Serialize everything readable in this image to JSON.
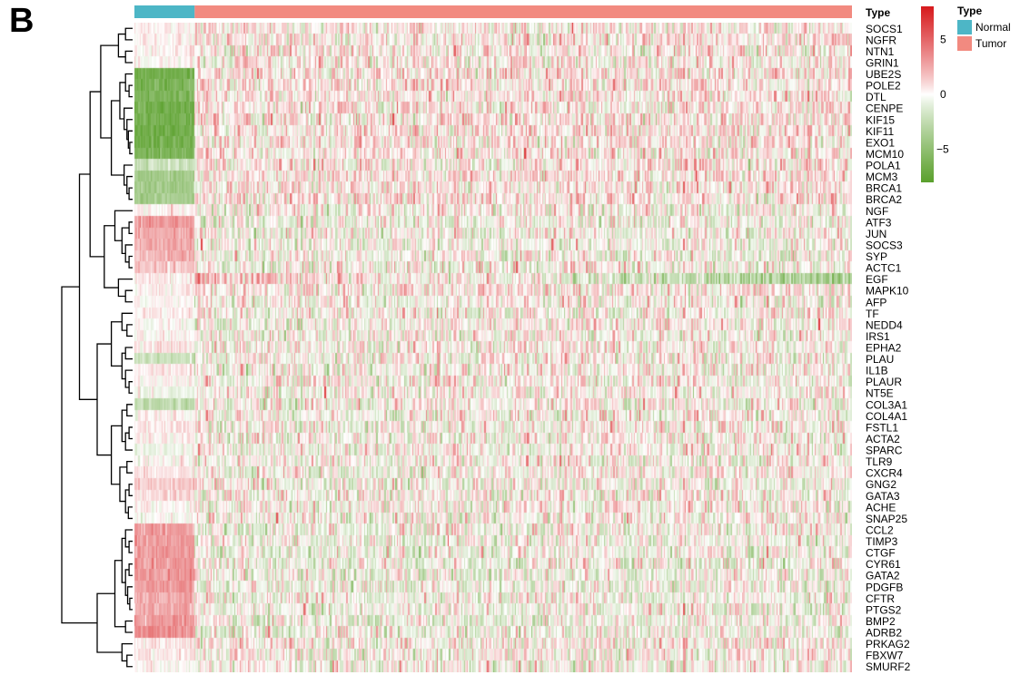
{
  "panel_label": "B",
  "chart_data": {
    "type": "heatmap",
    "genes": [
      "SOCS1",
      "NGFR",
      "NTN1",
      "GRIN1",
      "UBE2S",
      "POLE2",
      "DTL",
      "CENPE",
      "KIF15",
      "KIF11",
      "EXO1",
      "MCM10",
      "POLA1",
      "MCM3",
      "BRCA1",
      "BRCA2",
      "NGF",
      "ATF3",
      "JUN",
      "SOCS3",
      "SYP",
      "ACTC1",
      "EGF",
      "MAPK10",
      "AFP",
      "TF",
      "NEDD4",
      "IRS1",
      "EPHA2",
      "PLAU",
      "IL1B",
      "PLAUR",
      "NT5E",
      "COL3A1",
      "COL4A1",
      "FSTL1",
      "ACTA2",
      "SPARC",
      "TLR9",
      "CXCR4",
      "GNG2",
      "GATA3",
      "ACHE",
      "SNAP25",
      "CCL2",
      "TIMP3",
      "CTGF",
      "CYR61",
      "GATA2",
      "PDGFB",
      "CFTR",
      "PTGS2",
      "BMP2",
      "ADRB2",
      "PRKAG2",
      "FBXW7",
      "SMURF2"
    ],
    "sample_groups": [
      {
        "name": "Normal",
        "color": "#4DB6C6",
        "n_samples": 44,
        "approx_mean_expression": [
          0.3,
          0.2,
          0.3,
          0.2,
          -6.5,
          -6,
          -6,
          -6.5,
          -6.5,
          -6.5,
          -6.5,
          -6,
          -2,
          -4,
          -4,
          -4,
          0.4,
          3,
          2.5,
          2.5,
          2,
          1.5,
          0.3,
          0.5,
          0.2,
          0.5,
          0,
          0,
          0.5,
          -2,
          0.5,
          0,
          -0.5,
          -2.5,
          0.2,
          0.5,
          0.3,
          -0.5,
          0.2,
          0.5,
          1.5,
          1,
          0.2,
          0,
          3,
          3,
          3,
          3,
          3,
          3,
          2.5,
          2.5,
          3,
          3.5,
          0.5,
          0.5,
          0
        ]
      },
      {
        "name": "Tumor",
        "color": "#F28A80",
        "n_samples": 480,
        "approx_mean_expression": [
          0.2,
          0.4,
          0.3,
          0.3,
          0.6,
          0.5,
          0.5,
          0.5,
          0.5,
          0.5,
          0.5,
          0.5,
          0.4,
          0.5,
          0.5,
          0.5,
          0,
          -0.3,
          -0.3,
          -0.3,
          -0.2,
          -0.1,
          0,
          0.5,
          0,
          0,
          0,
          0,
          0,
          0,
          0,
          0,
          0,
          0,
          0,
          0,
          0,
          0,
          0,
          0,
          -0.2,
          -0.1,
          0,
          0,
          -0.4,
          -0.4,
          -0.4,
          -0.4,
          -0.4,
          -0.4,
          -0.3,
          -0.3,
          -0.4,
          -0.4,
          0,
          0,
          0
        ]
      }
    ],
    "special_patterns": {
      "EGF_tumor_gradient": "tumor samples range from about +2.5 on the left to about -4 on the right"
    },
    "color_scale": {
      "min": -8,
      "max": 8,
      "low_color": "#5AA02C",
      "mid_color": "#FFFFFF",
      "high_color": "#D7191C",
      "ticks": [
        5,
        0,
        -5
      ]
    },
    "annotation_track": {
      "title": "Type",
      "labels": [
        "Normal",
        "Tumor"
      ],
      "colors": [
        "#4DB6C6",
        "#F28A80"
      ]
    },
    "legend": {
      "type_title": "Type",
      "type_entries": [
        {
          "label": "Normal",
          "color": "#4DB6C6"
        },
        {
          "label": "Tumor",
          "color": "#F28A80"
        }
      ]
    },
    "row_dendrogram": true
  }
}
